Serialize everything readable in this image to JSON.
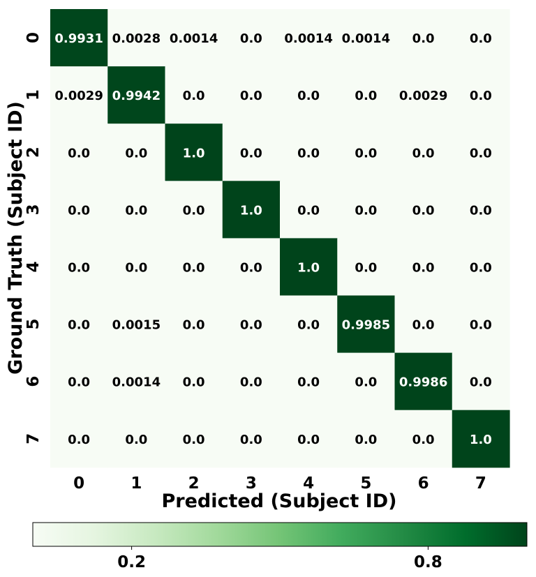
{
  "chart_data": {
    "type": "heatmap",
    "title": "",
    "xlabel": "Predicted (Subject ID)",
    "ylabel": "Ground Truth (Subject ID)",
    "x_categories": [
      "0",
      "1",
      "2",
      "3",
      "4",
      "5",
      "6",
      "7"
    ],
    "y_categories": [
      "0",
      "1",
      "2",
      "3",
      "4",
      "5",
      "6",
      "7"
    ],
    "cells": [
      [
        "0.9931",
        "0.0028",
        "0.0014",
        "0.0",
        "0.0014",
        "0.0014",
        "0.0",
        "0.0"
      ],
      [
        "0.0029",
        "0.9942",
        "0.0",
        "0.0",
        "0.0",
        "0.0",
        "0.0029",
        "0.0"
      ],
      [
        "0.0",
        "0.0",
        "1.0",
        "0.0",
        "0.0",
        "0.0",
        "0.0",
        "0.0"
      ],
      [
        "0.0",
        "0.0",
        "0.0",
        "1.0",
        "0.0",
        "0.0",
        "0.0",
        "0.0"
      ],
      [
        "0.0",
        "0.0",
        "0.0",
        "0.0",
        "1.0",
        "0.0",
        "0.0",
        "0.0"
      ],
      [
        "0.0",
        "0.0015",
        "0.0",
        "0.0",
        "0.0",
        "0.9985",
        "0.0",
        "0.0"
      ],
      [
        "0.0",
        "0.0014",
        "0.0",
        "0.0",
        "0.0",
        "0.0",
        "0.9986",
        "0.0"
      ],
      [
        "0.0",
        "0.0",
        "0.0",
        "0.0",
        "0.0",
        "0.0",
        "0.0",
        "1.0"
      ]
    ],
    "colormap": "Greens",
    "colormap_stops": [
      "#f7fcf5",
      "#e5f5e0",
      "#c7e9c0",
      "#a1d99b",
      "#74c476",
      "#41ab5d",
      "#238b45",
      "#006d2c",
      "#00441b"
    ],
    "colorbar": {
      "orientation": "horizontal",
      "placement": "bottom",
      "range": [
        0,
        1
      ],
      "ticks": [
        0.2,
        0.8
      ],
      "tick_labels": [
        "0.2",
        "0.8"
      ]
    },
    "text_color_light": "#ffffff",
    "text_color_dark": "#000000"
  }
}
